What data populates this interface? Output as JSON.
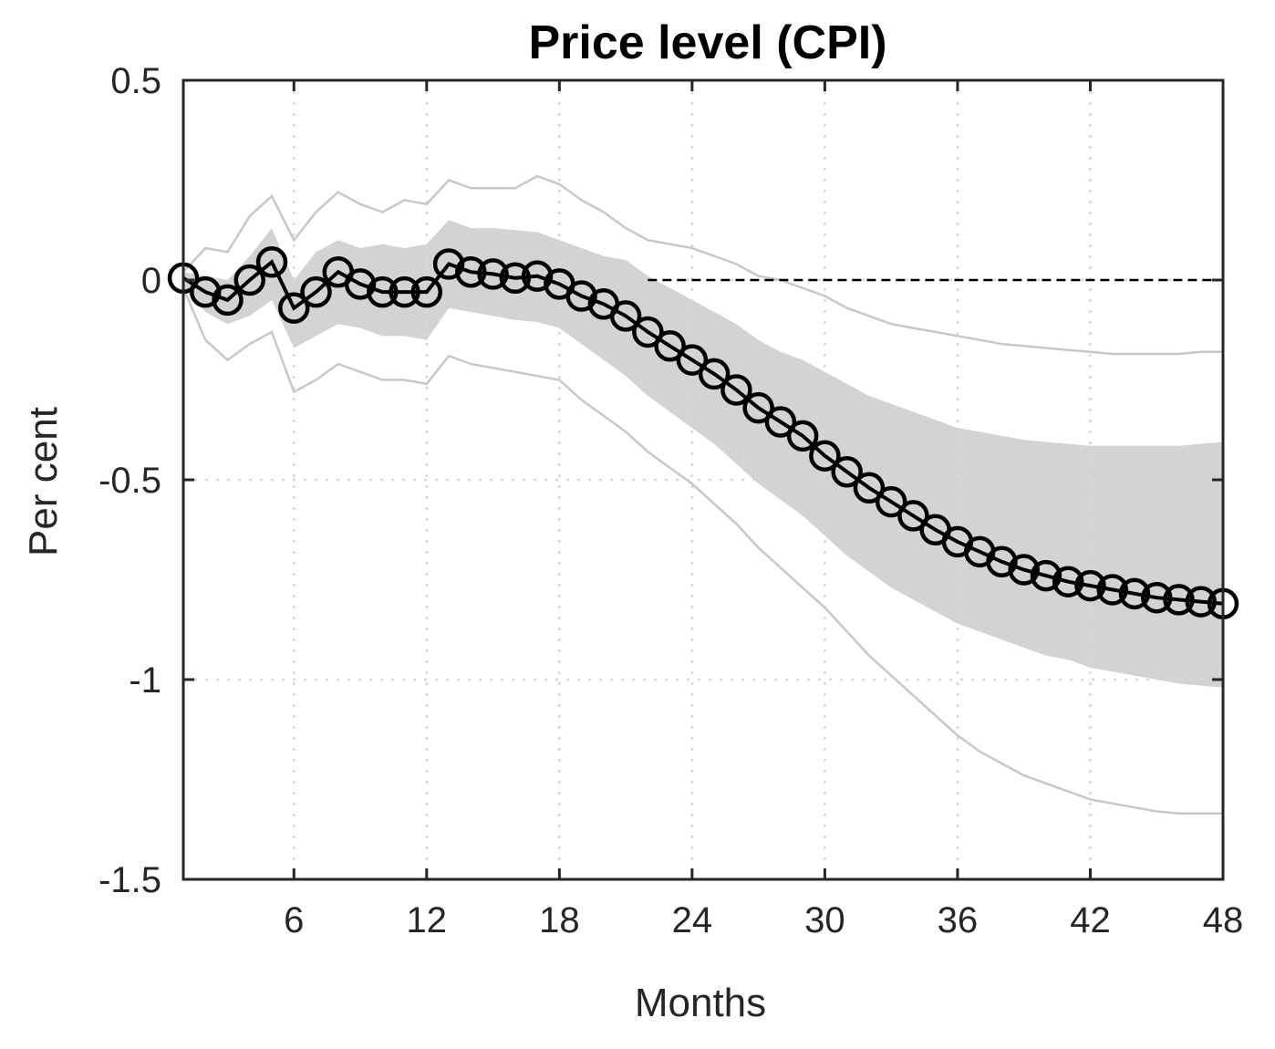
{
  "chart_data": {
    "type": "line",
    "title": "Price level (CPI)",
    "xlabel": "Months",
    "ylabel": "Per cent",
    "xlim": [
      1,
      48
    ],
    "ylim": [
      -1.5,
      0.5
    ],
    "xticks": [
      6,
      12,
      18,
      24,
      30,
      36,
      42,
      48
    ],
    "xtick_labels": [
      "6",
      "12",
      "18",
      "24",
      "30",
      "36",
      "42",
      "48"
    ],
    "yticks": [
      0.5,
      0,
      -0.5,
      -1,
      -1.5
    ],
    "ytick_labels": [
      "0.5",
      "0",
      "-0.5",
      "-1",
      "-1.5"
    ],
    "grid": true,
    "zero_reference_line": {
      "y": 0,
      "from_x": 22,
      "to_x": 48,
      "style": "dashed"
    },
    "x": [
      1,
      2,
      3,
      4,
      5,
      6,
      7,
      8,
      9,
      10,
      11,
      12,
      13,
      14,
      15,
      16,
      17,
      18,
      19,
      20,
      21,
      22,
      23,
      24,
      25,
      26,
      27,
      28,
      29,
      30,
      31,
      32,
      33,
      34,
      35,
      36,
      37,
      38,
      39,
      40,
      41,
      42,
      43,
      44,
      45,
      46,
      47,
      48
    ],
    "series": [
      {
        "role": "point_estimate",
        "marker": "circle",
        "color": "#000000",
        "values": [
          0.005,
          -0.03,
          -0.05,
          0.0,
          0.045,
          -0.07,
          -0.03,
          0.02,
          -0.01,
          -0.03,
          -0.03,
          -0.03,
          0.04,
          0.02,
          0.015,
          0.005,
          0.01,
          -0.01,
          -0.04,
          -0.06,
          -0.09,
          -0.13,
          -0.165,
          -0.2,
          -0.235,
          -0.275,
          -0.32,
          -0.355,
          -0.39,
          -0.44,
          -0.48,
          -0.52,
          -0.555,
          -0.59,
          -0.625,
          -0.655,
          -0.68,
          -0.705,
          -0.725,
          -0.74,
          -0.755,
          -0.765,
          -0.775,
          -0.785,
          -0.795,
          -0.8,
          -0.805,
          -0.81
        ]
      },
      {
        "role": "inner_band_upper",
        "color": "#d3d3d3",
        "values": [
          0.02,
          0.01,
          0.0,
          0.06,
          0.13,
          -0.0,
          0.07,
          0.1,
          0.08,
          0.09,
          0.08,
          0.09,
          0.15,
          0.13,
          0.13,
          0.125,
          0.12,
          0.1,
          0.08,
          0.06,
          0.05,
          0.01,
          -0.02,
          -0.05,
          -0.08,
          -0.11,
          -0.15,
          -0.18,
          -0.2,
          -0.23,
          -0.26,
          -0.29,
          -0.31,
          -0.33,
          -0.35,
          -0.37,
          -0.38,
          -0.39,
          -0.4,
          -0.405,
          -0.41,
          -0.415,
          -0.415,
          -0.415,
          -0.415,
          -0.415,
          -0.41,
          -0.405
        ]
      },
      {
        "role": "inner_band_lower",
        "color": "#d3d3d3",
        "values": [
          -0.02,
          -0.08,
          -0.11,
          -0.09,
          -0.05,
          -0.17,
          -0.14,
          -0.11,
          -0.12,
          -0.14,
          -0.14,
          -0.15,
          -0.07,
          -0.08,
          -0.09,
          -0.1,
          -0.105,
          -0.12,
          -0.16,
          -0.2,
          -0.24,
          -0.29,
          -0.33,
          -0.37,
          -0.41,
          -0.46,
          -0.51,
          -0.55,
          -0.59,
          -0.64,
          -0.69,
          -0.73,
          -0.77,
          -0.8,
          -0.83,
          -0.86,
          -0.88,
          -0.9,
          -0.92,
          -0.94,
          -0.95,
          -0.97,
          -0.98,
          -0.99,
          -1.0,
          -1.01,
          -1.015,
          -1.02
        ]
      },
      {
        "role": "outer_band_upper",
        "color": "#c8c8c8",
        "values": [
          0.02,
          0.08,
          0.07,
          0.16,
          0.21,
          0.1,
          0.17,
          0.22,
          0.19,
          0.17,
          0.2,
          0.19,
          0.25,
          0.23,
          0.23,
          0.23,
          0.26,
          0.24,
          0.2,
          0.17,
          0.13,
          0.1,
          0.09,
          0.08,
          0.06,
          0.04,
          0.01,
          -0.0,
          -0.02,
          -0.04,
          -0.07,
          -0.09,
          -0.11,
          -0.12,
          -0.13,
          -0.14,
          -0.15,
          -0.16,
          -0.165,
          -0.17,
          -0.175,
          -0.18,
          -0.185,
          -0.185,
          -0.185,
          -0.185,
          -0.18,
          -0.18
        ]
      },
      {
        "role": "outer_band_lower",
        "color": "#c8c8c8",
        "values": [
          -0.02,
          -0.15,
          -0.2,
          -0.16,
          -0.13,
          -0.28,
          -0.25,
          -0.21,
          -0.23,
          -0.25,
          -0.25,
          -0.26,
          -0.19,
          -0.21,
          -0.22,
          -0.23,
          -0.24,
          -0.25,
          -0.3,
          -0.34,
          -0.38,
          -0.43,
          -0.47,
          -0.51,
          -0.56,
          -0.61,
          -0.67,
          -0.72,
          -0.77,
          -0.82,
          -0.88,
          -0.94,
          -0.99,
          -1.04,
          -1.09,
          -1.14,
          -1.18,
          -1.21,
          -1.24,
          -1.26,
          -1.28,
          -1.3,
          -1.31,
          -1.32,
          -1.33,
          -1.335,
          -1.335,
          -1.335
        ]
      }
    ]
  }
}
